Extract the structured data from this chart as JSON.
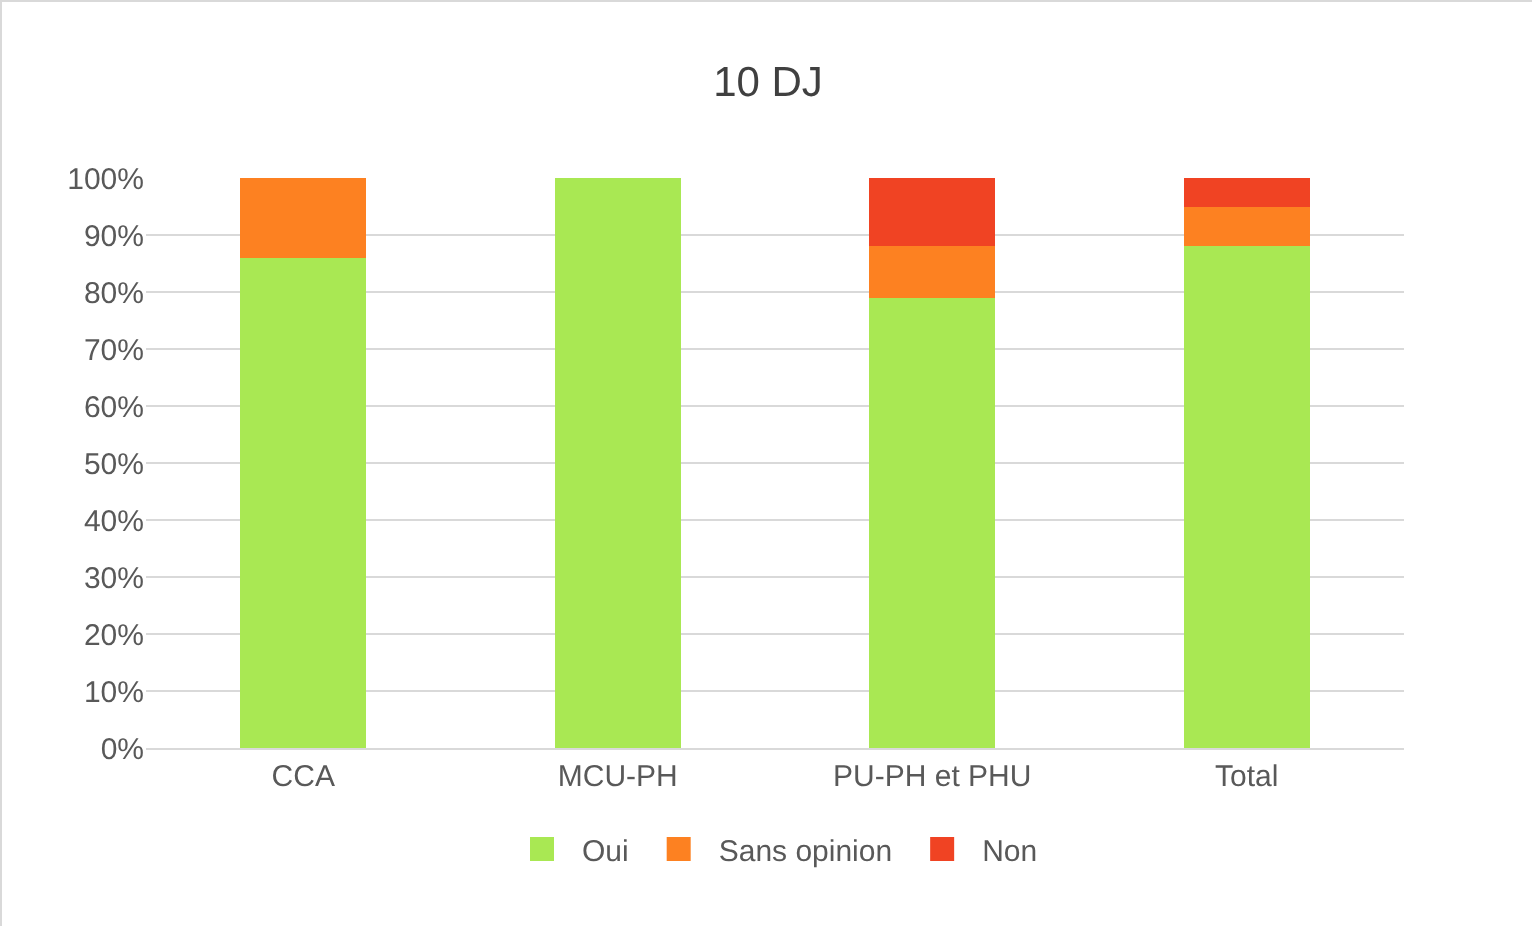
{
  "chart_data": {
    "type": "bar",
    "title": "10 DJ",
    "stacked": true,
    "categories": [
      "CCA",
      "MCU-PH",
      "PU-PH et PHU",
      "Total"
    ],
    "series": [
      {
        "name": "Oui",
        "color": "#a9e853",
        "values": [
          86,
          100,
          79,
          88
        ]
      },
      {
        "name": "Sans opinion",
        "color": "#fd8121",
        "values": [
          14,
          0,
          9,
          7
        ]
      },
      {
        "name": "Non",
        "color": "#f04323",
        "values": [
          0,
          0,
          12,
          5
        ]
      }
    ],
    "ylim": [
      0,
      100
    ],
    "yticks": [
      {
        "value": 0,
        "label": "0%"
      },
      {
        "value": 10,
        "label": "10%"
      },
      {
        "value": 20,
        "label": "20%"
      },
      {
        "value": 30,
        "label": "30%"
      },
      {
        "value": 40,
        "label": "40%"
      },
      {
        "value": 50,
        "label": "50%"
      },
      {
        "value": 60,
        "label": "60%"
      },
      {
        "value": 70,
        "label": "70%"
      },
      {
        "value": 80,
        "label": "80%"
      },
      {
        "value": 90,
        "label": "90%"
      },
      {
        "value": 100,
        "label": "100%"
      }
    ],
    "grid": "y",
    "legend": "bottom"
  }
}
